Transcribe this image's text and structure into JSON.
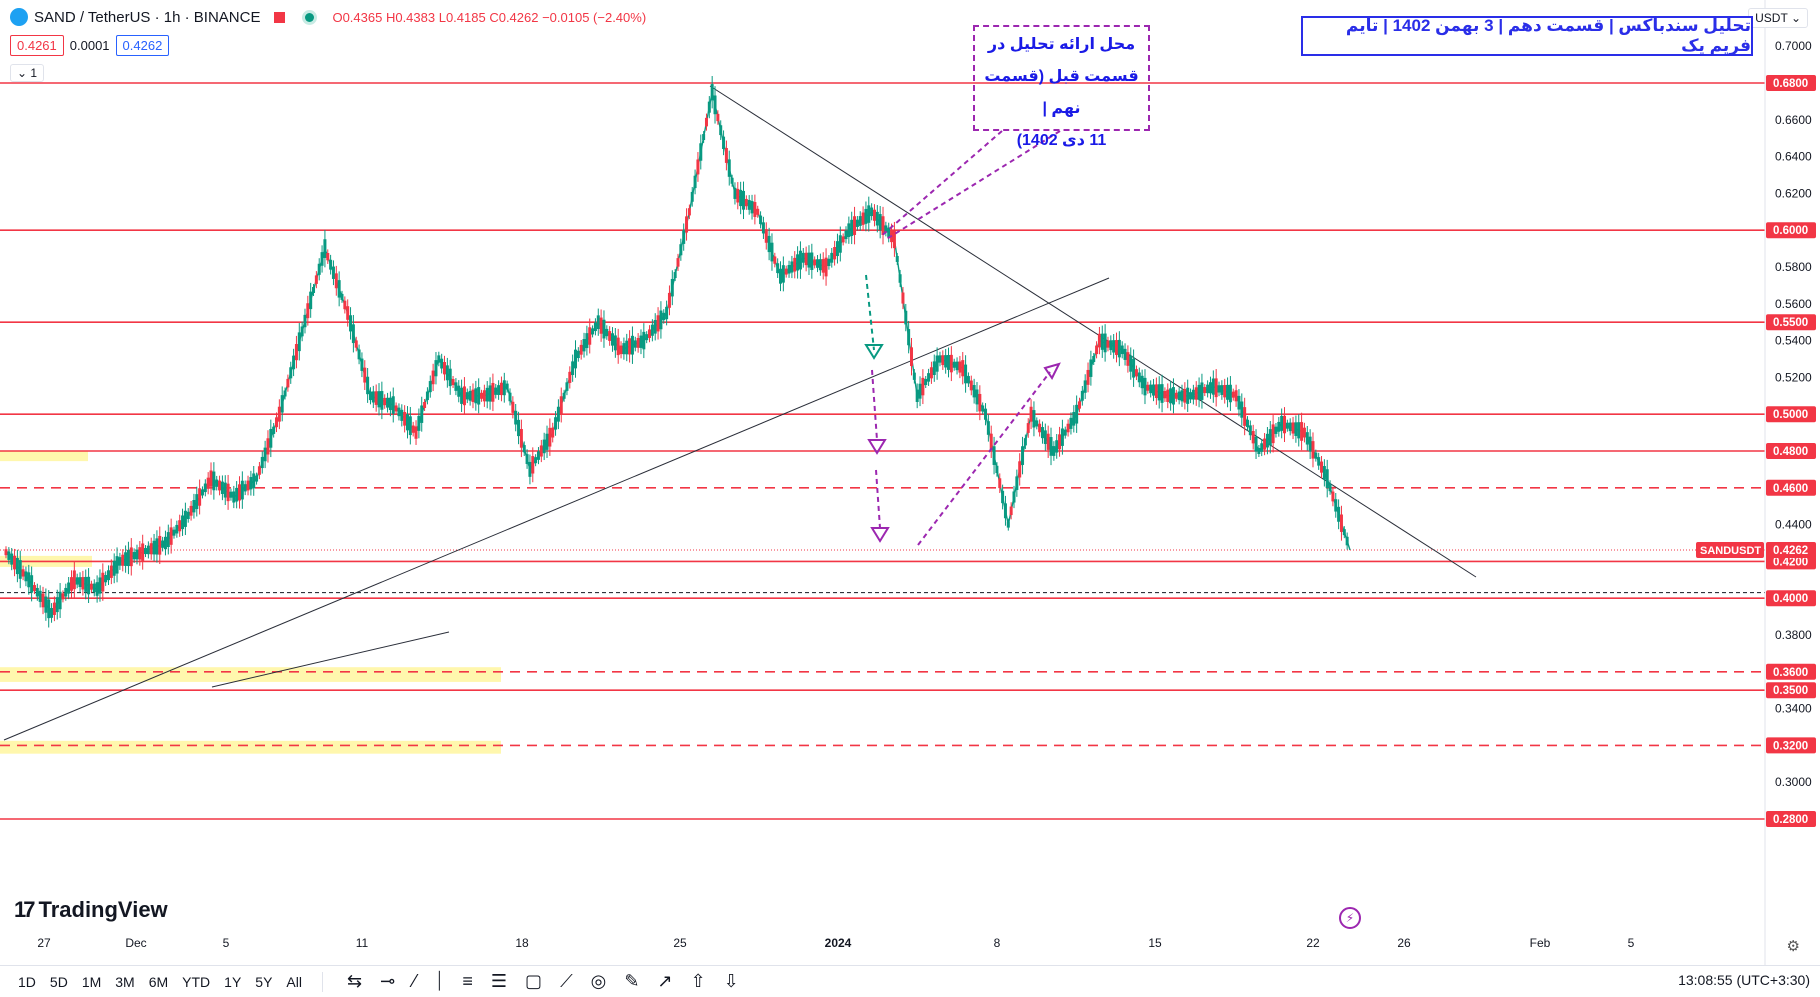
{
  "header": {
    "symbol": "SAND / TetherUS · 1h · BINANCE",
    "ohlc": "O0.4365 H0.4383 L0.4185 C0.4262 −0.0105 (−2.40%)"
  },
  "prices": {
    "sell": "0.4261",
    "spread": "0.0001",
    "buy": "0.4262"
  },
  "indicator_toggle": "1",
  "currency": "USDT",
  "title_text": "تحلیل سندباکس | قسمت دهم | 3 بهمن 1402 | تایم فریم یک",
  "note_lines": [
    "محل ارائه تحلیل در",
    "قسمت قبل (قسمت نهم |",
    "11 دی 1402)"
  ],
  "logo_text": "TradingView",
  "time_ranges": [
    "1D",
    "5D",
    "1M",
    "3M",
    "6M",
    "YTD",
    "1Y",
    "5Y",
    "All"
  ],
  "clock": "13:08:55 (UTC+3:30)",
  "colors": {
    "level": "#f23645",
    "up": "#089981",
    "down": "#f23645",
    "accent": "#2962ff",
    "note": "#9c27b0",
    "zone": "#fff176"
  },
  "chart_data": {
    "type": "candlestick",
    "symbol_label": "SANDUSDT",
    "last_price": "0.4262",
    "y_axis_ticks": [
      "0.7000",
      "0.6600",
      "0.6400",
      "0.6200",
      "0.5800",
      "0.5600",
      "0.5400",
      "0.5200",
      "0.4400",
      "0.3800",
      "0.3400",
      "0.3000"
    ],
    "levels": [
      {
        "value": "0.6800",
        "style": "solid"
      },
      {
        "value": "0.6000",
        "style": "solid"
      },
      {
        "value": "0.5500",
        "style": "solid"
      },
      {
        "value": "0.5000",
        "style": "solid"
      },
      {
        "value": "0.4800",
        "style": "solid"
      },
      {
        "value": "0.4600",
        "style": "dashed"
      },
      {
        "value": "0.4200",
        "style": "solid"
      },
      {
        "value": "0.4000",
        "style": "solid"
      },
      {
        "value": "0.3600",
        "style": "dashed"
      },
      {
        "value": "0.3500",
        "style": "solid"
      },
      {
        "value": "0.3200",
        "style": "dashed"
      },
      {
        "value": "0.2800",
        "style": "solid"
      }
    ],
    "x_axis_labels": [
      "27",
      "Dec",
      "5",
      "11",
      "18",
      "25",
      "2024",
      "8",
      "15",
      "22",
      "26",
      "Feb",
      "5"
    ],
    "price_path": [
      [
        "27 Nov",
        0.425
      ],
      [
        "28 Nov",
        0.41
      ],
      [
        "29 Nov",
        0.392
      ],
      [
        "30 Nov",
        0.41
      ],
      [
        "1 Dec",
        0.405
      ],
      [
        "2 Dec",
        0.42
      ],
      [
        "3 Dec",
        0.425
      ],
      [
        "4 Dec",
        0.43
      ],
      [
        "5 Dec",
        0.445
      ],
      [
        "6 Dec",
        0.465
      ],
      [
        "7 Dec",
        0.455
      ],
      [
        "8 Dec",
        0.465
      ],
      [
        "9 Dec",
        0.5
      ],
      [
        "10 Dec",
        0.545
      ],
      [
        "10 Dec",
        0.59
      ],
      [
        "11 Dec",
        0.555
      ],
      [
        "12 Dec",
        0.51
      ],
      [
        "13 Dec",
        0.505
      ],
      [
        "14 Dec",
        0.49
      ],
      [
        "15 Dec",
        0.53
      ],
      [
        "16 Dec",
        0.51
      ],
      [
        "17 Dec",
        0.51
      ],
      [
        "18 Dec",
        0.515
      ],
      [
        "19 Dec",
        0.47
      ],
      [
        "20 Dec",
        0.49
      ],
      [
        "21 Dec",
        0.53
      ],
      [
        "22 Dec",
        0.55
      ],
      [
        "23 Dec",
        0.535
      ],
      [
        "24 Dec",
        0.54
      ],
      [
        "25 Dec",
        0.555
      ],
      [
        "26 Dec",
        0.61
      ],
      [
        "26 Dec",
        0.675
      ],
      [
        "27 Dec",
        0.62
      ],
      [
        "28 Dec",
        0.61
      ],
      [
        "29 Dec",
        0.575
      ],
      [
        "30 Dec",
        0.585
      ],
      [
        "31 Dec",
        0.58
      ],
      [
        "1 Jan",
        0.6
      ],
      [
        "2 Jan",
        0.61
      ],
      [
        "3 Jan",
        0.595
      ],
      [
        "4 Jan",
        0.51
      ],
      [
        "5 Jan",
        0.53
      ],
      [
        "6 Jan",
        0.525
      ],
      [
        "7 Jan",
        0.5
      ],
      [
        "8 Jan",
        0.44
      ],
      [
        "9 Jan",
        0.5
      ],
      [
        "10 Jan",
        0.48
      ],
      [
        "11 Jan",
        0.5
      ],
      [
        "12 Jan",
        0.54
      ],
      [
        "13 Jan",
        0.535
      ],
      [
        "14 Jan",
        0.515
      ],
      [
        "15 Jan",
        0.51
      ],
      [
        "16 Jan",
        0.51
      ],
      [
        "17 Jan",
        0.515
      ],
      [
        "18 Jan",
        0.51
      ],
      [
        "19 Jan",
        0.48
      ],
      [
        "20 Jan",
        0.495
      ],
      [
        "21 Jan",
        0.49
      ],
      [
        "22 Jan",
        0.465
      ],
      [
        "23 Jan",
        0.4262
      ]
    ]
  }
}
